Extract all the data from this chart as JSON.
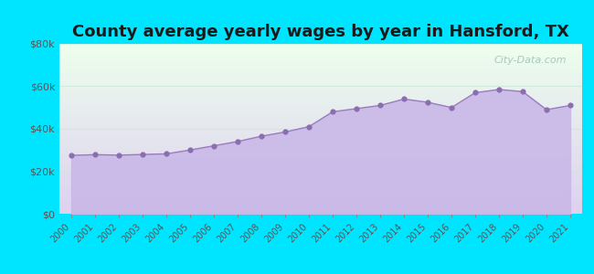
{
  "title": "County average yearly wages by year in Hansford, TX",
  "years": [
    2000,
    2001,
    2002,
    2003,
    2004,
    2005,
    2006,
    2007,
    2008,
    2009,
    2010,
    2011,
    2012,
    2013,
    2014,
    2015,
    2016,
    2017,
    2018,
    2019,
    2020,
    2021
  ],
  "values": [
    27500,
    27800,
    27600,
    27900,
    28200,
    30000,
    32000,
    34000,
    36500,
    38500,
    41000,
    48000,
    49500,
    51000,
    54000,
    52500,
    50000,
    57000,
    58500,
    57500,
    49000,
    51000
  ],
  "fill_color": "#c9b8e8",
  "fill_alpha": 0.9,
  "line_color": "#9a7dbe",
  "dot_color": "#8b6db0",
  "dot_size": 12,
  "background_color": "#00e5ff",
  "plot_bg_gradient_top_left": "#edfaed",
  "plot_bg_gradient_bottom_right": "#ddd0ef",
  "ylim": [
    0,
    80000
  ],
  "yticks": [
    0,
    20000,
    40000,
    60000,
    80000
  ],
  "ytick_labels": [
    "$0",
    "$20k",
    "$40k",
    "$60k",
    "$80k"
  ],
  "title_fontsize": 13,
  "title_fontweight": "bold",
  "watermark": "City-Data.com",
  "watermark_color": "#90b8b0",
  "tick_label_color": "#555555",
  "grid_color": "#c8e8d8",
  "grid_alpha": 0.7
}
